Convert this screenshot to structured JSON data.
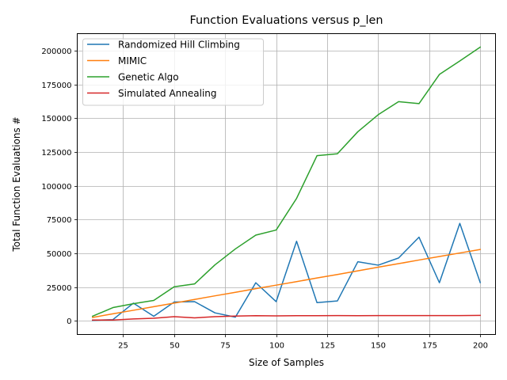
{
  "chart_data": {
    "type": "line",
    "title": "Function Evaluations versus p_len",
    "xlabel": "Size of Samples",
    "ylabel": "Total Function Evaluations #",
    "xlim": [
      2.5,
      207.5
    ],
    "ylim": [
      -10000,
      212600
    ],
    "xticks": [
      25,
      50,
      75,
      100,
      125,
      150,
      175,
      200
    ],
    "yticks": [
      0,
      25000,
      50000,
      75000,
      100000,
      125000,
      150000,
      175000,
      200000
    ],
    "grid": true,
    "legend_position": "top-left",
    "x": [
      10,
      20,
      30,
      40,
      50,
      60,
      70,
      80,
      90,
      100,
      110,
      120,
      130,
      140,
      150,
      160,
      170,
      180,
      190,
      200
    ],
    "series": [
      {
        "name": "Randomized Hill Climbing",
        "color": "#1f77b4",
        "values": [
          500,
          1000,
          13200,
          3500,
          14000,
          14300,
          6000,
          2800,
          28300,
          14300,
          59000,
          13600,
          14800,
          43800,
          41300,
          46600,
          62000,
          28300,
          72200,
          28400
        ]
      },
      {
        "name": "MIMIC",
        "color": "#ff7f0e",
        "values": [
          2600,
          5300,
          7900,
          10600,
          13200,
          15900,
          18600,
          21200,
          23900,
          26500,
          29100,
          31800,
          34400,
          37100,
          39800,
          42400,
          45100,
          47700,
          50300,
          52900
        ]
      },
      {
        "name": "Genetic Algo",
        "color": "#2ca02c",
        "values": [
          3500,
          9900,
          12800,
          15200,
          25300,
          27400,
          41500,
          53300,
          63500,
          67300,
          90700,
          122300,
          123700,
          140000,
          152600,
          162300,
          160800,
          182400,
          192400,
          202600
        ]
      },
      {
        "name": "Simulated Annealing",
        "color": "#d62728",
        "values": [
          700,
          700,
          1500,
          2000,
          3200,
          2300,
          3200,
          3600,
          3900,
          3800,
          3900,
          3900,
          4000,
          3900,
          4000,
          4000,
          4000,
          4000,
          4000,
          4100
        ]
      }
    ]
  }
}
